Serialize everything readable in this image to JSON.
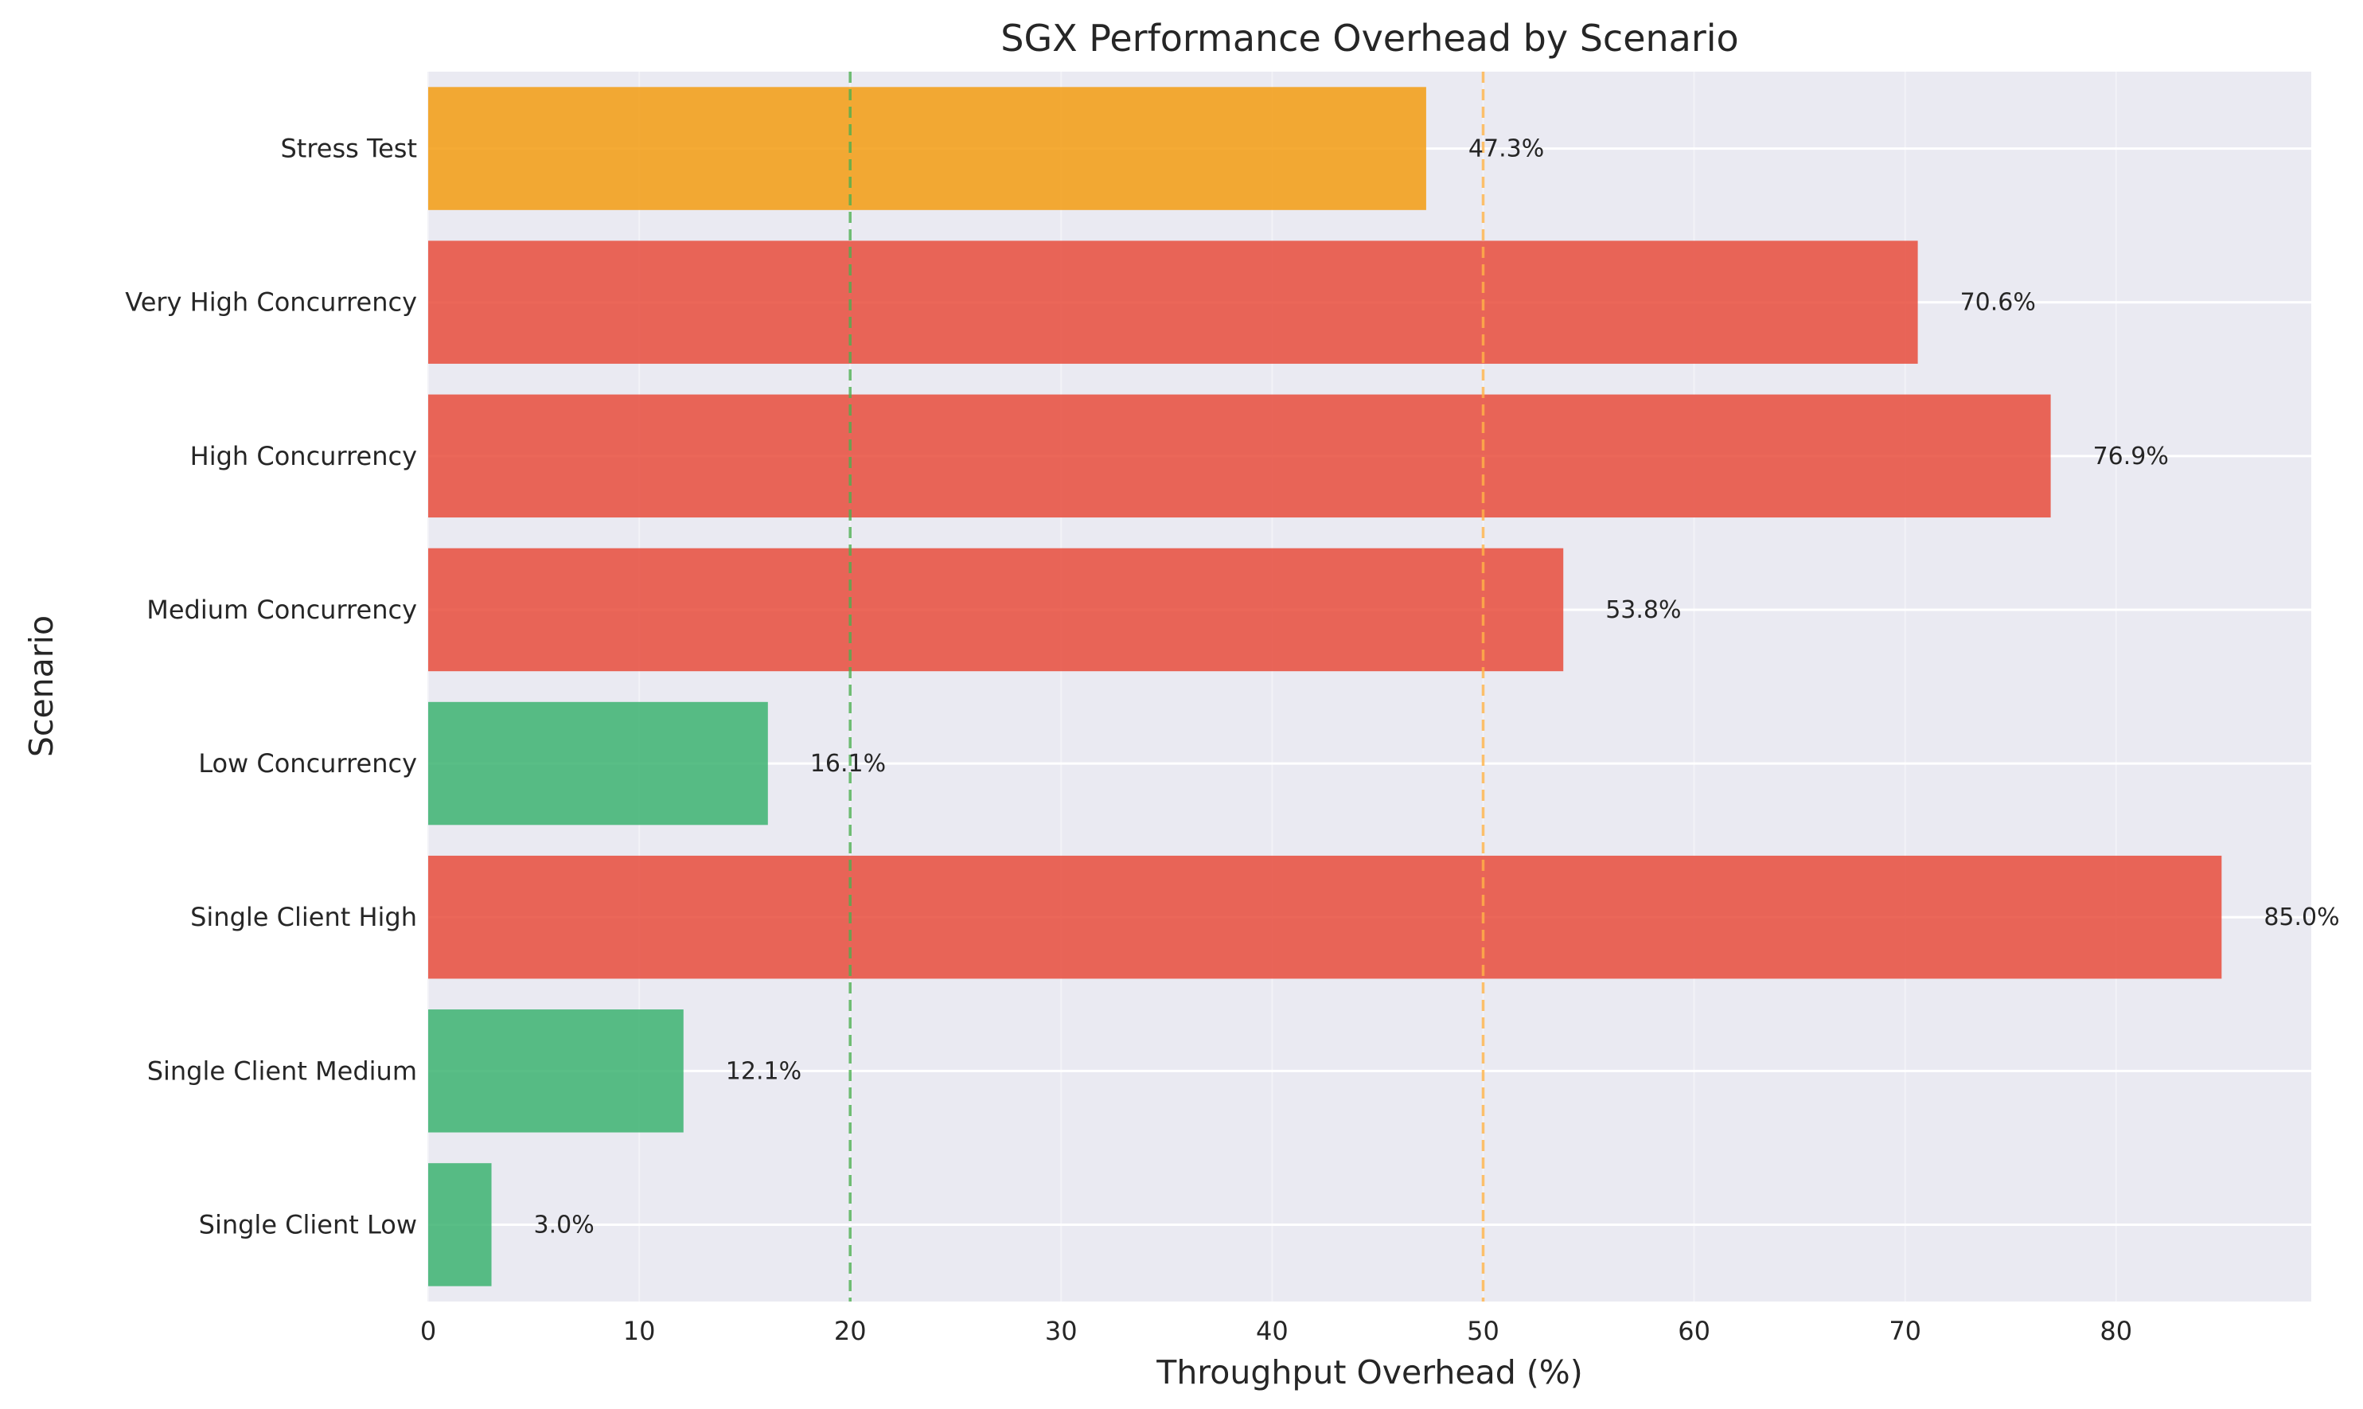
{
  "chart_data": {
    "type": "bar",
    "orientation": "horizontal",
    "title": "SGX Performance Overhead by Scenario",
    "xlabel": "Throughput Overhead (%)",
    "ylabel": "Scenario",
    "categories": [
      "Single Client Low",
      "Single Client Medium",
      "Single Client High",
      "Low Concurrency",
      "Medium Concurrency",
      "High Concurrency",
      "Very High Concurrency",
      "Stress Test"
    ],
    "values": [
      3.0,
      12.1,
      85.0,
      16.1,
      53.8,
      76.9,
      70.6,
      47.3
    ],
    "value_labels": [
      "3.0%",
      "12.1%",
      "85.0%",
      "16.1%",
      "53.8%",
      "76.9%",
      "70.6%",
      "47.3%"
    ],
    "bar_colors": [
      "#3cb371",
      "#3cb371",
      "#e74c3c",
      "#3cb371",
      "#e74c3c",
      "#e74c3c",
      "#e74c3c",
      "#f39c12"
    ],
    "xlim": [
      0,
      89.25
    ],
    "xticks": [
      0,
      10,
      20,
      30,
      40,
      50,
      60,
      70,
      80
    ],
    "reference_lines": [
      {
        "x": 20,
        "color": "#4caf50",
        "style": "dashed"
      },
      {
        "x": 50,
        "color": "#ffb347",
        "style": "dashed"
      }
    ],
    "grid": true,
    "background": "#eaeaf2"
  }
}
